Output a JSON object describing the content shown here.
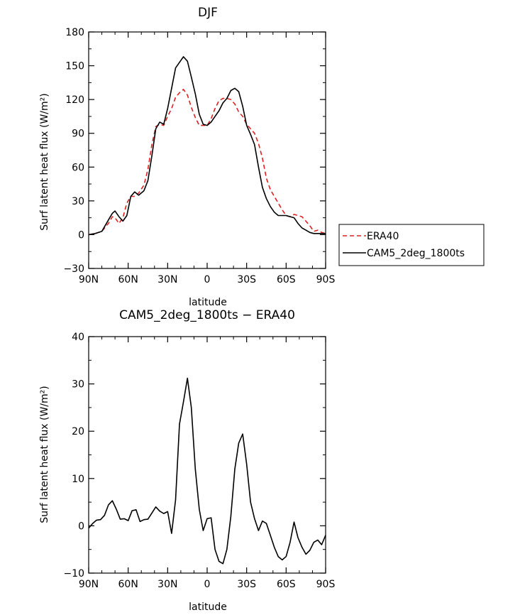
{
  "chart_data": [
    {
      "type": "line",
      "title": "DJF",
      "xlabel": "latitude",
      "ylabel": "Surf latent heat flux (W/m²)",
      "ylim": [
        -30,
        180
      ],
      "xlim": [
        -90,
        90
      ],
      "yticks": [
        "−30",
        "0",
        "30",
        "60",
        "90",
        "120",
        "150",
        "180"
      ],
      "ytick_values": [
        -30,
        0,
        30,
        60,
        90,
        120,
        150,
        180
      ],
      "xticks": [
        "90N",
        "60N",
        "30N",
        "0",
        "30S",
        "60S",
        "90S"
      ],
      "xtick_values": [
        -90,
        -60,
        -30,
        0,
        30,
        60,
        90
      ],
      "legend_position": "right",
      "series": [
        {
          "name": "ERA40",
          "color": "#e02020",
          "style": "dashed",
          "x": [
            -90,
            -85,
            -80,
            -75,
            -72,
            -70,
            -67,
            -64,
            -61,
            -58,
            -55,
            -52,
            -48,
            -45,
            -42,
            -39,
            -36,
            -33,
            -30,
            -27,
            -24,
            -21,
            -18,
            -15,
            -12,
            -9,
            -6,
            -3,
            0,
            3,
            6,
            9,
            12,
            15,
            18,
            21,
            24,
            27,
            30,
            33,
            36,
            39,
            42,
            45,
            48,
            51,
            54,
            57,
            60,
            63,
            66,
            69,
            72,
            75,
            78,
            81,
            84,
            87,
            90
          ],
          "values": [
            0,
            1,
            3,
            10,
            16,
            15,
            10,
            15,
            28,
            34,
            34,
            37,
            44,
            58,
            80,
            96,
            98,
            97,
            105,
            112,
            122,
            126,
            129,
            124,
            113,
            104,
            97,
            97,
            97,
            103,
            112,
            119,
            121,
            121,
            120,
            116,
            109,
            105,
            98,
            94,
            90,
            81,
            68,
            50,
            40,
            34,
            28,
            22,
            17,
            16,
            18,
            17,
            16,
            12,
            8,
            3,
            4,
            2,
            1
          ]
        },
        {
          "name": "CAM5_2deg_1800ts",
          "color": "#000000",
          "style": "solid",
          "x": [
            -90,
            -85,
            -80,
            -75,
            -72,
            -70,
            -67,
            -64,
            -61,
            -58,
            -55,
            -52,
            -48,
            -45,
            -42,
            -39,
            -36,
            -33,
            -30,
            -27,
            -24,
            -21,
            -18,
            -15,
            -12,
            -9,
            -6,
            -3,
            0,
            3,
            6,
            9,
            12,
            15,
            18,
            21,
            24,
            27,
            30,
            33,
            36,
            39,
            42,
            45,
            48,
            51,
            54,
            57,
            60,
            63,
            66,
            69,
            72,
            75,
            78,
            81,
            84,
            87,
            90
          ],
          "values": [
            0,
            1,
            3,
            13,
            19,
            21,
            16,
            12,
            17,
            34,
            38,
            35,
            39,
            48,
            70,
            94,
            100,
            98,
            112,
            130,
            148,
            153,
            158,
            154,
            140,
            125,
            107,
            98,
            97,
            100,
            105,
            110,
            117,
            121,
            128,
            130,
            127,
            114,
            97,
            89,
            80,
            60,
            42,
            32,
            25,
            20,
            17,
            17,
            17,
            16,
            15,
            10,
            6,
            4,
            2,
            1,
            1,
            1,
            1
          ]
        }
      ]
    },
    {
      "type": "line",
      "title": "CAM5_2deg_1800ts − ERA40",
      "xlabel": "latitude",
      "ylabel": "Surf latent heat flux (W/m²)",
      "ylim": [
        -10,
        40
      ],
      "xlim": [
        -90,
        90
      ],
      "yticks": [
        "−10",
        "0",
        "10",
        "20",
        "30",
        "40"
      ],
      "ytick_values": [
        -10,
        0,
        10,
        20,
        30,
        40
      ],
      "xticks": [
        "90N",
        "60N",
        "30N",
        "0",
        "30S",
        "60S",
        "90S"
      ],
      "xtick_values": [
        -90,
        -60,
        -30,
        0,
        30,
        60,
        90
      ],
      "series": [
        {
          "color": "#000000",
          "style": "solid",
          "x": [
            -90,
            -87,
            -84,
            -81,
            -78,
            -75,
            -72,
            -69,
            -66,
            -63,
            -60,
            -57,
            -54,
            -51,
            -48,
            -45,
            -42,
            -39,
            -36,
            -33,
            -30,
            -27,
            -24,
            -21,
            -18,
            -15,
            -12,
            -9,
            -6,
            -3,
            0,
            3,
            6,
            9,
            12,
            15,
            18,
            21,
            24,
            27,
            30,
            33,
            36,
            39,
            42,
            45,
            48,
            51,
            54,
            57,
            60,
            63,
            66,
            69,
            72,
            75,
            78,
            81,
            84,
            87,
            90
          ],
          "values": [
            -0.5,
            0.5,
            1.2,
            1.3,
            2.2,
            4.4,
            5.3,
            3.5,
            1.4,
            1.5,
            1.1,
            3.2,
            3.4,
            0.9,
            1.3,
            1.4,
            2.7,
            4.0,
            3.1,
            2.6,
            3.0,
            -1.6,
            5.5,
            21.5,
            26.2,
            31.2,
            25.0,
            12.0,
            3.5,
            -1.0,
            1.5,
            1.7,
            -5.0,
            -7.5,
            -8.0,
            -5.0,
            2.0,
            12.0,
            17.5,
            19.4,
            13.0,
            5.0,
            1.5,
            -1.0,
            1.0,
            0.5,
            -2.0,
            -4.5,
            -6.5,
            -7.2,
            -6.5,
            -3.5,
            0.8,
            -2.5,
            -4.5,
            -6.0,
            -5.2,
            -3.5,
            -3.0,
            -4.0,
            -2.0
          ]
        }
      ]
    }
  ]
}
